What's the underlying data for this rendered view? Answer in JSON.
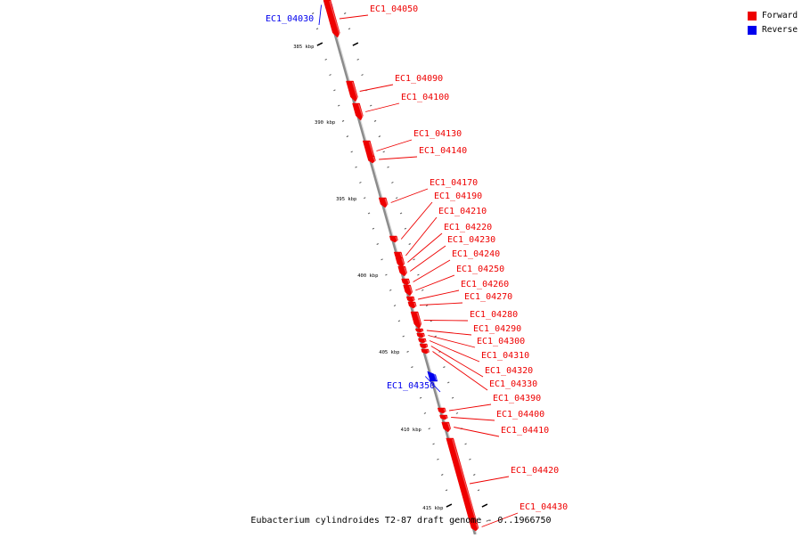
{
  "legend": {
    "forward_label": "Forward",
    "reverse_label": "Reverse",
    "forward_color": "#ee0000",
    "reverse_color": "#0000ee"
  },
  "caption": "Eubacterium cylindroides T2-87 draft genome - 0..1966750",
  "ticks": [
    "385 kbp",
    "390 kbp",
    "395 kbp",
    "400 kbp",
    "405 kbp",
    "410 kbp",
    "415 kbp"
  ],
  "genes": [
    {
      "name": "EC1_04030",
      "strand": "reverse"
    },
    {
      "name": "EC1_04050",
      "strand": "forward"
    },
    {
      "name": "EC1_04090",
      "strand": "forward"
    },
    {
      "name": "EC1_04100",
      "strand": "forward"
    },
    {
      "name": "EC1_04130",
      "strand": "forward"
    },
    {
      "name": "EC1_04140",
      "strand": "forward"
    },
    {
      "name": "EC1_04170",
      "strand": "forward"
    },
    {
      "name": "EC1_04190",
      "strand": "forward"
    },
    {
      "name": "EC1_04210",
      "strand": "forward"
    },
    {
      "name": "EC1_04220",
      "strand": "forward"
    },
    {
      "name": "EC1_04230",
      "strand": "forward"
    },
    {
      "name": "EC1_04240",
      "strand": "forward"
    },
    {
      "name": "EC1_04250",
      "strand": "forward"
    },
    {
      "name": "EC1_04260",
      "strand": "forward"
    },
    {
      "name": "EC1_04270",
      "strand": "forward"
    },
    {
      "name": "EC1_04280",
      "strand": "forward"
    },
    {
      "name": "EC1_04290",
      "strand": "forward"
    },
    {
      "name": "EC1_04300",
      "strand": "forward"
    },
    {
      "name": "EC1_04310",
      "strand": "forward"
    },
    {
      "name": "EC1_04320",
      "strand": "forward"
    },
    {
      "name": "EC1_04330",
      "strand": "forward"
    },
    {
      "name": "EC1_04350",
      "strand": "reverse"
    },
    {
      "name": "EC1_04390",
      "strand": "forward"
    },
    {
      "name": "EC1_04400",
      "strand": "forward"
    },
    {
      "name": "EC1_04410",
      "strand": "forward"
    },
    {
      "name": "EC1_04420",
      "strand": "forward"
    },
    {
      "name": "EC1_04430",
      "strand": "forward"
    }
  ]
}
